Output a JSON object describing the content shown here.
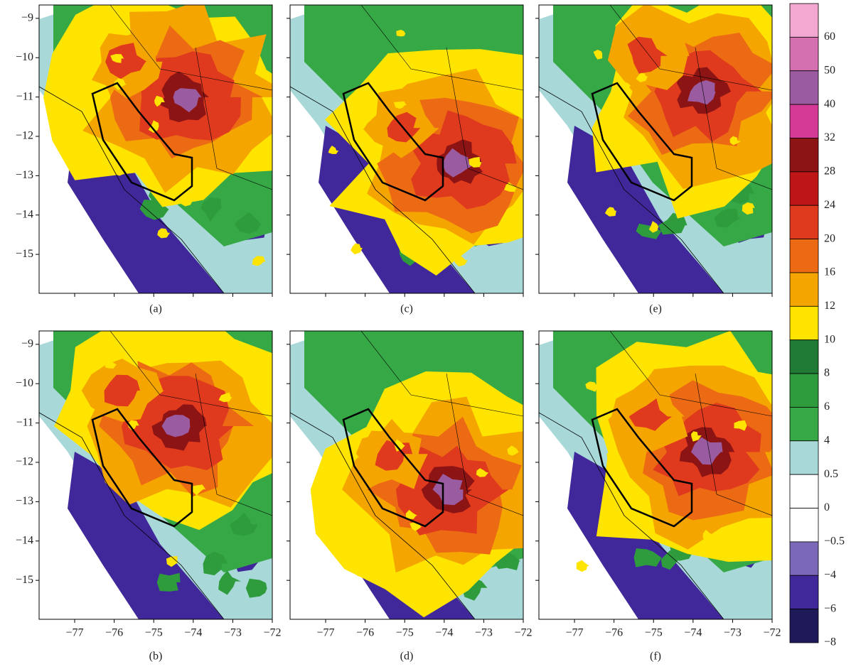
{
  "panels": [
    {
      "label": "(a)"
    },
    {
      "label": "(b)"
    },
    {
      "label": "(c)"
    },
    {
      "label": "(d)"
    },
    {
      "label": "(e)"
    },
    {
      "label": "(f)"
    }
  ],
  "axes": {
    "xlim": [
      -77.9,
      -72
    ],
    "ylim": [
      -8.66,
      -15.99
    ],
    "xticks": [
      {
        "value": -77,
        "label": "−77"
      },
      {
        "value": -76,
        "label": "−76"
      },
      {
        "value": -75,
        "label": "−75"
      },
      {
        "value": -74,
        "label": "−74"
      },
      {
        "value": -73,
        "label": "−73"
      },
      {
        "value": -72,
        "label": "−72"
      }
    ],
    "yticks": [
      {
        "value": -9,
        "label": "−9"
      },
      {
        "value": -10,
        "label": "−10"
      },
      {
        "value": -11,
        "label": "−11"
      },
      {
        "value": -12,
        "label": "−12"
      },
      {
        "value": -13,
        "label": "−13"
      },
      {
        "value": -14,
        "label": "−14"
      },
      {
        "value": -15,
        "label": "−15"
      }
    ]
  },
  "colorbar": {
    "levels": [
      {
        "label": "60",
        "color": "#f2a8d0"
      },
      {
        "label": "50",
        "color": "#d470b0"
      },
      {
        "label": "40",
        "color": "#9b5ba0"
      },
      {
        "label": "32",
        "color": "#d43a96"
      },
      {
        "label": "28",
        "color": "#8c1414"
      },
      {
        "label": "24",
        "color": "#be1616"
      },
      {
        "label": "20",
        "color": "#e03a1e"
      },
      {
        "label": "16",
        "color": "#ec6a14"
      },
      {
        "label": "12",
        "color": "#f5a500"
      },
      {
        "label": "10",
        "color": "#ffe400"
      },
      {
        "label": "8",
        "color": "#1e7a34"
      },
      {
        "label": "6",
        "color": "#2e9c3c"
      },
      {
        "label": "4",
        "color": "#36a846"
      },
      {
        "label": "0.5",
        "color": "#a8d8d8"
      },
      {
        "label": "0",
        "color": "#ffffff"
      },
      {
        "label": "−0.5",
        "color": "#ffffff"
      },
      {
        "label": "−4",
        "color": "#7b68b8"
      },
      {
        "label": "−6",
        "color": "#40289a"
      },
      {
        "label": "−8",
        "color": "#1e1a5a"
      }
    ]
  }
}
